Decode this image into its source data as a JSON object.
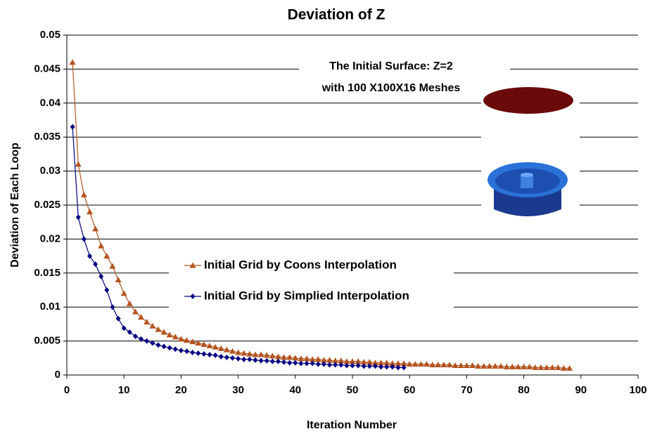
{
  "chart_data": {
    "type": "line",
    "title": "Deviation of Z",
    "x_label": "Iteration Number",
    "y_label": "Deviation of Each Loop",
    "xlim": [
      0,
      100
    ],
    "xticks": [
      0,
      10,
      20,
      30,
      40,
      50,
      60,
      70,
      80,
      90,
      100
    ],
    "ylim": [
      0,
      0.05
    ],
    "yticks": [
      0,
      0.005,
      0.01,
      0.015,
      0.02,
      0.025,
      0.03,
      0.035,
      0.04,
      0.045,
      0.05
    ],
    "grid": true,
    "annotations": [
      "The Initial Surface: Z=2",
      "with 100 X100X16 Meshes"
    ],
    "series": [
      {
        "name": "Initial Grid by Coons Interpolation",
        "color": "#b3541e",
        "marker": "triangle",
        "x": [
          1,
          2,
          3,
          4,
          5,
          6,
          7,
          8,
          9,
          10,
          11,
          12,
          13,
          14,
          15,
          16,
          17,
          18,
          19,
          20,
          21,
          22,
          23,
          24,
          25,
          26,
          27,
          28,
          29,
          30,
          31,
          32,
          33,
          34,
          35,
          36,
          37,
          38,
          39,
          40,
          41,
          42,
          43,
          44,
          45,
          46,
          47,
          48,
          49,
          50,
          51,
          52,
          53,
          54,
          55,
          56,
          57,
          58,
          59,
          60,
          61,
          62,
          63,
          64,
          65,
          66,
          67,
          68,
          69,
          70,
          71,
          72,
          73,
          74,
          75,
          76,
          77,
          78,
          79,
          80,
          81,
          82,
          83,
          84,
          85,
          86,
          87,
          88
        ],
        "values": [
          0.046,
          0.031,
          0.0265,
          0.024,
          0.0215,
          0.019,
          0.0175,
          0.016,
          0.014,
          0.012,
          0.0105,
          0.0093,
          0.0085,
          0.0078,
          0.0072,
          0.0067,
          0.0063,
          0.0059,
          0.0056,
          0.0053,
          0.0051,
          0.0049,
          0.0047,
          0.0045,
          0.0043,
          0.0041,
          0.0039,
          0.0037,
          0.0035,
          0.0033,
          0.0032,
          0.0031,
          0.003,
          0.003,
          0.0029,
          0.0028,
          0.0027,
          0.0026,
          0.0026,
          0.0025,
          0.0024,
          0.0024,
          0.0023,
          0.0023,
          0.0022,
          0.0022,
          0.0021,
          0.0021,
          0.002,
          0.002,
          0.002,
          0.0019,
          0.0019,
          0.0018,
          0.0018,
          0.0018,
          0.0017,
          0.0017,
          0.0017,
          0.0016,
          0.0016,
          0.0016,
          0.0016,
          0.0015,
          0.0015,
          0.0015,
          0.0015,
          0.0014,
          0.0014,
          0.0014,
          0.0014,
          0.0013,
          0.0013,
          0.0013,
          0.0013,
          0.0013,
          0.0012,
          0.0012,
          0.0012,
          0.0012,
          0.0012,
          0.0011,
          0.0011,
          0.0011,
          0.0011,
          0.0011,
          0.001,
          0.001
        ]
      },
      {
        "name": "Initial Grid by Simplied Interpolation",
        "color": "#000080",
        "marker": "diamond",
        "x": [
          1,
          2,
          3,
          4,
          5,
          6,
          7,
          8,
          9,
          10,
          11,
          12,
          13,
          14,
          15,
          16,
          17,
          18,
          19,
          20,
          21,
          22,
          23,
          24,
          25,
          26,
          27,
          28,
          29,
          30,
          31,
          32,
          33,
          34,
          35,
          36,
          37,
          38,
          39,
          40,
          41,
          42,
          43,
          44,
          45,
          46,
          47,
          48,
          49,
          50,
          51,
          52,
          53,
          54,
          55,
          56,
          57,
          58,
          59
        ],
        "values": [
          0.0365,
          0.0232,
          0.02,
          0.0175,
          0.0163,
          0.0145,
          0.0125,
          0.01,
          0.0083,
          0.0069,
          0.0063,
          0.0057,
          0.0053,
          0.005,
          0.0047,
          0.0044,
          0.0042,
          0.004,
          0.0038,
          0.0036,
          0.0035,
          0.0033,
          0.0032,
          0.0031,
          0.003,
          0.0029,
          0.0027,
          0.0026,
          0.0025,
          0.0024,
          0.0023,
          0.0023,
          0.0022,
          0.0021,
          0.0021,
          0.002,
          0.002,
          0.0019,
          0.0018,
          0.0018,
          0.0017,
          0.0017,
          0.0017,
          0.0016,
          0.0016,
          0.0015,
          0.0015,
          0.0015,
          0.0014,
          0.0014,
          0.0014,
          0.0013,
          0.0013,
          0.0013,
          0.0012,
          0.0012,
          0.0012,
          0.0011,
          0.0011
        ]
      }
    ]
  }
}
